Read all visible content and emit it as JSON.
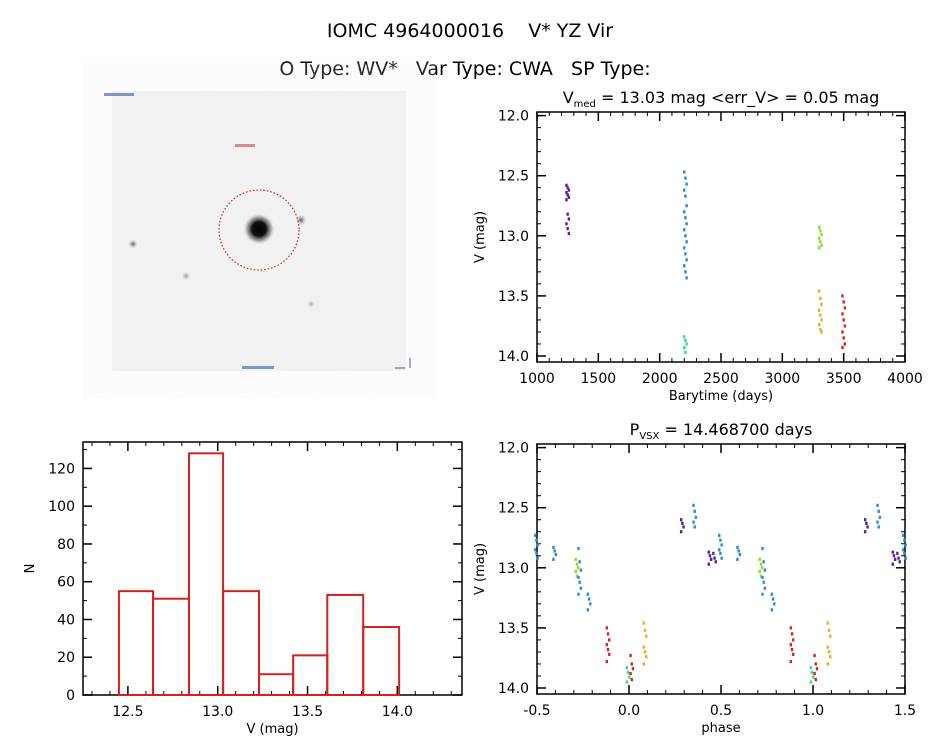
{
  "header": {
    "title": "IOMC 4964000016    V* YZ Vir",
    "subtitle": "O Type: WV*   Var Type: CWA   SP Type:"
  },
  "image_panel": {
    "description_icon": "sky-image-with-aperture-circle",
    "aperture_color": "#cc2222"
  },
  "chart_data": [
    {
      "id": "lightcurve",
      "type": "scatter",
      "title_main": "V",
      "title_sub": "med",
      "title_rest": " = 13.03 mag <err_V> = 0.05 mag",
      "xlabel": "Barytime (days)",
      "ylabel": "V (mag)",
      "xlim": [
        1000,
        4000
      ],
      "ylim": [
        11.97,
        14.05
      ],
      "y_inverted": true,
      "xticks": [
        "1000",
        "1500",
        "2000",
        "2500",
        "3000",
        "3500",
        "4000"
      ],
      "yticks": [
        "12.0",
        "12.5",
        "13.0",
        "13.5",
        "14.0"
      ],
      "clusters": [
        {
          "color": "#55209a",
          "x": 1250,
          "y": [
            12.58,
            12.6,
            12.62,
            12.64,
            12.66,
            12.68,
            12.7,
            12.82,
            12.86,
            12.9,
            12.94,
            12.98
          ]
        },
        {
          "color": "#2a8ad8",
          "x": 2210,
          "y": [
            12.47,
            12.52,
            12.57,
            12.62,
            12.67,
            12.75,
            12.8,
            12.85,
            12.9,
            12.95,
            13.0,
            13.05,
            13.1,
            13.15,
            13.2,
            13.25,
            13.3,
            13.35
          ]
        },
        {
          "color": "#2ee08a",
          "x": 2210,
          "y": [
            13.84,
            13.87,
            13.9,
            13.93,
            13.97
          ]
        },
        {
          "color": "#8ade20",
          "x": 3310,
          "y": [
            12.93,
            12.96,
            12.99,
            13.02,
            13.05,
            13.08,
            13.1
          ]
        },
        {
          "color": "#f0a820",
          "x": 3310,
          "y": [
            13.46,
            13.52,
            13.57,
            13.62,
            13.66,
            13.7,
            13.74,
            13.78,
            13.8
          ]
        },
        {
          "color": "#d82020",
          "x": 3500,
          "y": [
            13.5,
            13.55,
            13.6,
            13.65,
            13.7,
            13.75,
            13.8,
            13.85,
            13.9,
            13.93
          ]
        }
      ]
    },
    {
      "id": "histogram",
      "type": "bar",
      "xlabel": "V (mag)",
      "ylabel": "N",
      "xlim": [
        12.25,
        14.36
      ],
      "ylim": [
        0,
        134
      ],
      "bin_edges": [
        12.45,
        12.64,
        12.84,
        13.03,
        13.23,
        13.42,
        13.61,
        13.81,
        14.01
      ],
      "values": [
        55,
        51,
        128,
        55,
        11,
        21,
        53,
        36
      ],
      "bar_color": "#d42020",
      "xticks": [
        "12.5",
        "13.0",
        "13.5",
        "14.0"
      ],
      "yticks": [
        "0",
        "20",
        "40",
        "60",
        "80",
        "100",
        "120"
      ]
    },
    {
      "id": "phased",
      "type": "scatter",
      "title_main": "P",
      "title_sub": "VSX",
      "title_rest": " = 14.468700 days",
      "xlabel": "phase",
      "ylabel": "V (mag)",
      "xlim": [
        -0.5,
        1.5
      ],
      "ylim": [
        11.97,
        14.05
      ],
      "y_inverted": true,
      "xticks": [
        "-0.5",
        "0.0",
        "0.5",
        "1.0",
        "1.5"
      ],
      "yticks": [
        "12.0",
        "12.5",
        "13.0",
        "13.5",
        "14.0"
      ],
      "clusters": [
        {
          "color": "#2a8ad8",
          "x": 0.497,
          "y": [
            12.73,
            12.77,
            12.81,
            12.85,
            12.88,
            12.92
          ]
        },
        {
          "color": "#2a8ad8",
          "x": 0.596,
          "y": [
            12.83,
            12.86,
            12.89,
            12.93
          ]
        },
        {
          "color": "#8ade20",
          "x": 0.717,
          "y": [
            12.93,
            12.97,
            13.0,
            13.03,
            13.07
          ]
        },
        {
          "color": "#2a8ad8",
          "x": 0.732,
          "y": [
            12.84,
            12.95,
            13.02,
            13.08,
            13.12,
            13.17,
            13.22
          ]
        },
        {
          "color": "#2a8ad8",
          "x": 0.783,
          "y": [
            13.22,
            13.26,
            13.3,
            13.35
          ]
        },
        {
          "color": "#d82020",
          "x": 0.886,
          "y": [
            13.5,
            13.55,
            13.6,
            13.64,
            13.68,
            13.72,
            13.78
          ]
        },
        {
          "color": "#2ee08a",
          "x": 0.995,
          "y": [
            13.83,
            13.87,
            13.91,
            13.95
          ]
        },
        {
          "color": "#d82020",
          "x": 0.015,
          "y": [
            13.73,
            13.8,
            13.84,
            13.88,
            13.93
          ]
        },
        {
          "color": "#f0a820",
          "x": 0.087,
          "y": [
            13.46,
            13.52,
            13.57,
            13.66,
            13.7,
            13.74,
            13.8
          ]
        },
        {
          "color": "#55209a",
          "x": 0.29,
          "y": [
            12.6,
            12.63,
            12.66,
            12.7
          ]
        },
        {
          "color": "#2a8ad8",
          "x": 0.357,
          "y": [
            12.48,
            12.53,
            12.58,
            12.62,
            12.66
          ]
        },
        {
          "color": "#55209a",
          "x": 0.44,
          "y": [
            12.87,
            12.9,
            12.93,
            12.97
          ]
        },
        {
          "color": "#55209a",
          "x": 0.465,
          "y": [
            12.88,
            12.92,
            12.95
          ]
        }
      ]
    }
  ]
}
